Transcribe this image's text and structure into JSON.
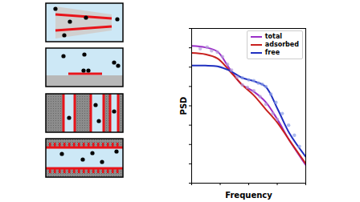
{
  "chart_data": {
    "type": "line",
    "xlabel": "Frequency",
    "ylabel": "PSD",
    "log": true,
    "grid": false,
    "legend": "upper right",
    "tick_labels": false,
    "xlim": [
      1,
      10000
    ],
    "ylim": [
      1e-06,
      100
    ],
    "xticks": [
      1,
      10,
      100,
      1000,
      10000
    ],
    "yticks": [
      1e-06,
      1e-05,
      0.0001,
      0.001,
      0.01,
      0.1,
      1,
      10,
      100
    ],
    "x": [
      1,
      3,
      8,
      21,
      56,
      148,
      390,
      1030,
      2700,
      10000
    ],
    "series": [
      {
        "name": "total",
        "color": "#9b30c8",
        "line_style": "solid",
        "values": [
          12.4,
          10.5,
          6.4,
          0.86,
          0.13,
          0.055,
          0.016,
          0.0019,
          0.00016,
          8.6e-06
        ]
      },
      {
        "name": "adsorbed",
        "color": "#c8201e",
        "line_style": "solid",
        "values": [
          5.4,
          4.6,
          2.8,
          0.67,
          0.13,
          0.036,
          0.0068,
          0.0013,
          0.00016,
          1.02e-05
        ]
      },
      {
        "name": "free",
        "color": "#2030c0",
        "line_style": "solid",
        "values": [
          1.2,
          1.2,
          1.1,
          0.67,
          0.29,
          0.19,
          0.098,
          0.0068,
          0.00037,
          2.3e-05
        ]
      },
      {
        "type": "scatter",
        "color": "#b49ad8",
        "marker": "circle",
        "x": [
          2,
          3.5,
          5,
          8,
          12,
          18,
          25,
          40,
          60,
          90,
          150,
          250,
          400,
          700,
          1000
        ],
        "values": [
          9,
          11,
          7,
          6,
          3.5,
          1.4,
          0.7,
          0.3,
          0.12,
          0.09,
          0.06,
          0.03,
          0.012,
          0.004,
          0.002
        ]
      },
      {
        "type": "scatter",
        "color": "#8a9ee8",
        "marker": "circle",
        "x": [
          60,
          100,
          150,
          220,
          300,
          400,
          600,
          900,
          1500,
          2500,
          4000,
          6000
        ],
        "values": [
          0.28,
          0.22,
          0.2,
          0.15,
          0.13,
          0.1,
          0.04,
          0.015,
          0.004,
          0.001,
          0.0003,
          8e-05
        ]
      }
    ]
  }
}
